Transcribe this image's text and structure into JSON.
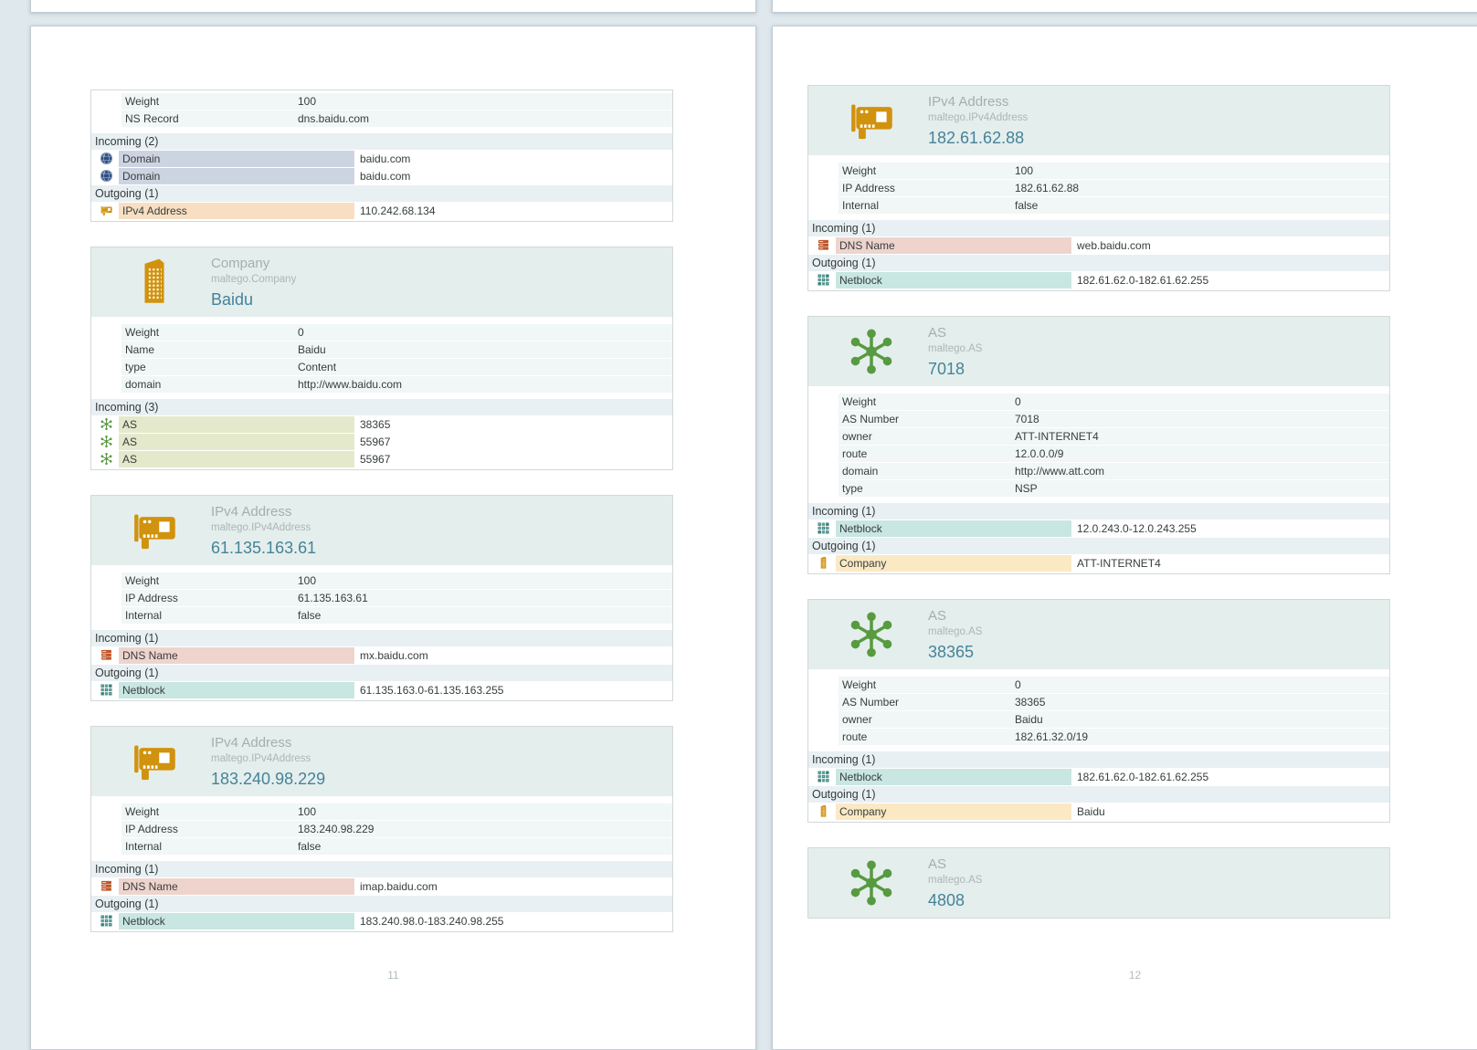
{
  "colors": {
    "canvas_background": "#dfe8ed",
    "card_header_background": "#e4eeec",
    "property_row_background": "#f1f6f6",
    "section_header_background": "#e9f0f3",
    "entity_value_teal": "#45839a",
    "icon_orange": "#d1920e",
    "icon_green": "#579a40",
    "icon_navy": "#2e4e7e",
    "icon_rust": "#bf5527",
    "icon_teal": "#35817b",
    "highlight_domain": "#cdd4e1",
    "highlight_ipv4": "#f8dfc2",
    "highlight_dns": "#eed4cd",
    "highlight_netblock": "#c8e6e2",
    "highlight_as": "#e4e9cb",
    "highlight_company": "#fbe9c4"
  },
  "pages": [
    {
      "number": "11",
      "cards": [
        {
          "header": null,
          "properties": [
            {
              "label": "Weight",
              "value": "100"
            },
            {
              "label": "NS Record",
              "value": "dns.baidu.com"
            }
          ],
          "sections": [
            {
              "title": "Incoming (2)",
              "rows": [
                {
                  "kind": "domain",
                  "icon": "domain-globe-icon",
                  "label": "Domain",
                  "value": "baidu.com"
                },
                {
                  "kind": "domain",
                  "icon": "domain-globe-icon",
                  "label": "Domain",
                  "value": "baidu.com"
                }
              ]
            },
            {
              "title": "Outgoing (1)",
              "rows": [
                {
                  "kind": "ipv4",
                  "icon": "network-card-icon",
                  "label": "IPv4 Address",
                  "value": "110.242.68.134"
                }
              ]
            }
          ]
        },
        {
          "header": {
            "kind": "company",
            "icon": "company-building-icon",
            "type_label": "Company",
            "type_class": "maltego.Company",
            "value": "Baidu"
          },
          "properties": [
            {
              "label": "Weight",
              "value": "0"
            },
            {
              "label": "Name",
              "value": "Baidu"
            },
            {
              "label": "type",
              "value": "Content"
            },
            {
              "label": "domain",
              "value": "http://www.baidu.com"
            }
          ],
          "sections": [
            {
              "title": "Incoming (3)",
              "rows": [
                {
                  "kind": "as",
                  "icon": "as-node-icon",
                  "label": "AS",
                  "value": "38365"
                },
                {
                  "kind": "as",
                  "icon": "as-node-icon",
                  "label": "AS",
                  "value": "55967"
                },
                {
                  "kind": "as",
                  "icon": "as-node-icon",
                  "label": "AS",
                  "value": "55967"
                }
              ]
            }
          ]
        },
        {
          "header": {
            "kind": "ipv4",
            "icon": "network-card-icon",
            "type_label": "IPv4 Address",
            "type_class": "maltego.IPv4Address",
            "value": "61.135.163.61"
          },
          "properties": [
            {
              "label": "Weight",
              "value": "100"
            },
            {
              "label": "IP Address",
              "value": "61.135.163.61"
            },
            {
              "label": "Internal",
              "value": "false"
            }
          ],
          "sections": [
            {
              "title": "Incoming (1)",
              "rows": [
                {
                  "kind": "dns",
                  "icon": "dns-server-icon",
                  "label": "DNS Name",
                  "value": "mx.baidu.com"
                }
              ]
            },
            {
              "title": "Outgoing (1)",
              "rows": [
                {
                  "kind": "netblock",
                  "icon": "netblock-grid-icon",
                  "label": "Netblock",
                  "value": "61.135.163.0-61.135.163.255"
                }
              ]
            }
          ]
        },
        {
          "header": {
            "kind": "ipv4",
            "icon": "network-card-icon",
            "type_label": "IPv4 Address",
            "type_class": "maltego.IPv4Address",
            "value": "183.240.98.229"
          },
          "properties": [
            {
              "label": "Weight",
              "value": "100"
            },
            {
              "label": "IP Address",
              "value": "183.240.98.229"
            },
            {
              "label": "Internal",
              "value": "false"
            }
          ],
          "sections": [
            {
              "title": "Incoming (1)",
              "rows": [
                {
                  "kind": "dns",
                  "icon": "dns-server-icon",
                  "label": "DNS Name",
                  "value": "imap.baidu.com"
                }
              ]
            },
            {
              "title": "Outgoing (1)",
              "rows": [
                {
                  "kind": "netblock",
                  "icon": "netblock-grid-icon",
                  "label": "Netblock",
                  "value": "183.240.98.0-183.240.98.255"
                }
              ]
            }
          ]
        }
      ]
    },
    {
      "number": "12",
      "cards": [
        {
          "header": {
            "kind": "ipv4",
            "icon": "network-card-icon",
            "type_label": "IPv4 Address",
            "type_class": "maltego.IPv4Address",
            "value": "182.61.62.88"
          },
          "properties": [
            {
              "label": "Weight",
              "value": "100"
            },
            {
              "label": "IP Address",
              "value": "182.61.62.88"
            },
            {
              "label": "Internal",
              "value": "false"
            }
          ],
          "sections": [
            {
              "title": "Incoming (1)",
              "rows": [
                {
                  "kind": "dns",
                  "icon": "dns-server-icon",
                  "label": "DNS Name",
                  "value": "web.baidu.com"
                }
              ]
            },
            {
              "title": "Outgoing (1)",
              "rows": [
                {
                  "kind": "netblock",
                  "icon": "netblock-grid-icon",
                  "label": "Netblock",
                  "value": "182.61.62.0-182.61.62.255"
                }
              ]
            }
          ]
        },
        {
          "header": {
            "kind": "as",
            "icon": "as-node-icon",
            "type_label": "AS",
            "type_class": "maltego.AS",
            "value": "7018"
          },
          "properties": [
            {
              "label": "Weight",
              "value": "0"
            },
            {
              "label": "AS Number",
              "value": "7018"
            },
            {
              "label": "owner",
              "value": "ATT-INTERNET4"
            },
            {
              "label": "route",
              "value": "12.0.0.0/9"
            },
            {
              "label": "domain",
              "value": "http://www.att.com"
            },
            {
              "label": "type",
              "value": "NSP"
            }
          ],
          "sections": [
            {
              "title": "Incoming (1)",
              "rows": [
                {
                  "kind": "netblock",
                  "icon": "netblock-grid-icon",
                  "label": "Netblock",
                  "value": "12.0.243.0-12.0.243.255"
                }
              ]
            },
            {
              "title": "Outgoing (1)",
              "rows": [
                {
                  "kind": "company",
                  "icon": "company-building-icon",
                  "label": "Company",
                  "value": "ATT-INTERNET4"
                }
              ]
            }
          ]
        },
        {
          "header": {
            "kind": "as",
            "icon": "as-node-icon",
            "type_label": "AS",
            "type_class": "maltego.AS",
            "value": "38365"
          },
          "properties": [
            {
              "label": "Weight",
              "value": "0"
            },
            {
              "label": "AS Number",
              "value": "38365"
            },
            {
              "label": "owner",
              "value": "Baidu"
            },
            {
              "label": "route",
              "value": "182.61.32.0/19"
            }
          ],
          "sections": [
            {
              "title": "Incoming (1)",
              "rows": [
                {
                  "kind": "netblock",
                  "icon": "netblock-grid-icon",
                  "label": "Netblock",
                  "value": "182.61.62.0-182.61.62.255"
                }
              ]
            },
            {
              "title": "Outgoing (1)",
              "rows": [
                {
                  "kind": "company",
                  "icon": "company-building-icon",
                  "label": "Company",
                  "value": "Baidu"
                }
              ]
            }
          ]
        },
        {
          "header": {
            "kind": "as",
            "icon": "as-node-icon",
            "type_label": "AS",
            "type_class": "maltego.AS",
            "value": "4808"
          },
          "truncated": true,
          "properties": [],
          "sections": []
        }
      ]
    }
  ]
}
